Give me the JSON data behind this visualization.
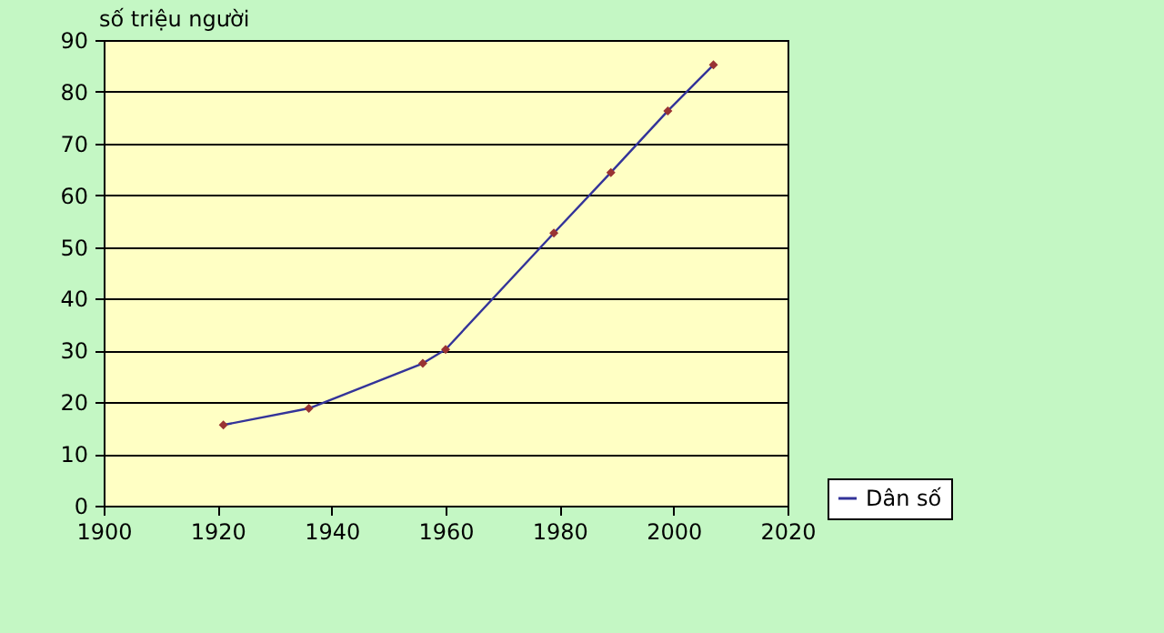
{
  "chart_data": {
    "type": "line",
    "ylabel": "số triệu người",
    "x": [
      1921,
      1936,
      1956,
      1960,
      1979,
      1989,
      1999,
      2007
    ],
    "series": [
      {
        "name": "Dân số",
        "color": "#333399",
        "values": [
          15.6,
          18.8,
          27.5,
          30.2,
          52.7,
          64.4,
          76.3,
          85.2
        ]
      }
    ],
    "marker": "diamond",
    "line_style": "solid",
    "xlim": [
      1900,
      2020
    ],
    "xticks": [
      1900,
      1920,
      1940,
      1960,
      1980,
      2000,
      2020
    ],
    "ylim": [
      0,
      90
    ],
    "yticks": [
      0,
      10,
      20,
      30,
      40,
      50,
      60,
      70,
      80,
      90
    ],
    "grid": "y",
    "legend": "right"
  }
}
